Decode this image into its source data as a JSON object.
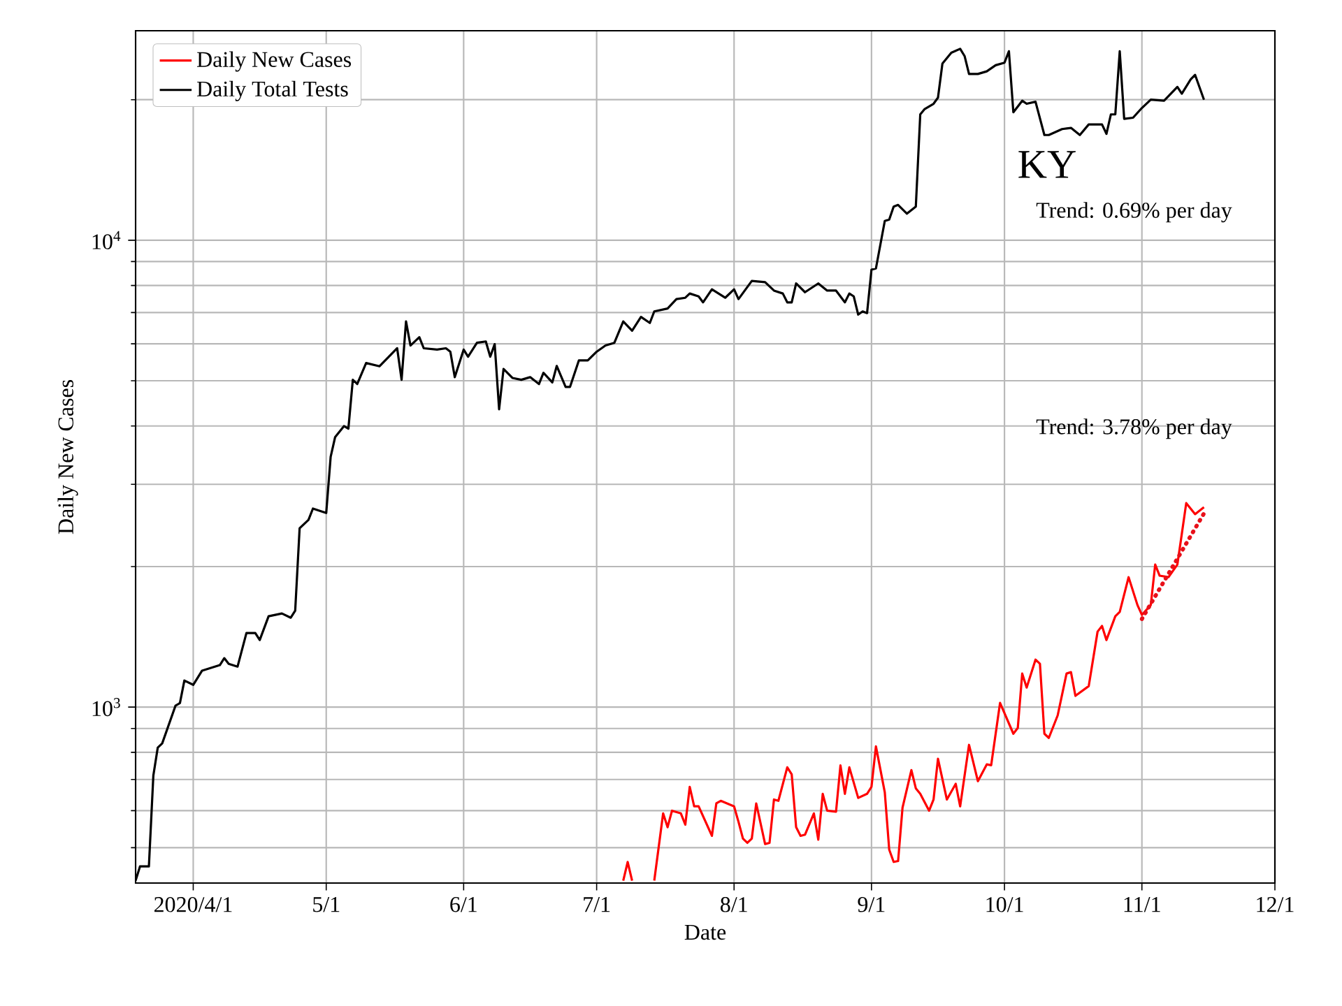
{
  "chart_data": {
    "type": "line",
    "title": "KY",
    "xlabel": "Date",
    "ylabel": "Daily New Cases",
    "log": "y",
    "grid": true,
    "legend": "top left",
    "xlim": [
      "2020-03-19",
      "2020-12-01"
    ],
    "xticks": [
      {
        "value": "2020-04-01",
        "label": "2020/4/1"
      },
      {
        "value": "2020-05-01",
        "label": "5/1"
      },
      {
        "value": "2020-06-01",
        "label": "6/1"
      },
      {
        "value": "2020-07-01",
        "label": "7/1"
      },
      {
        "value": "2020-08-01",
        "label": "8/1"
      },
      {
        "value": "2020-09-01",
        "label": "9/1"
      },
      {
        "value": "2020-10-01",
        "label": "10/1"
      },
      {
        "value": "2020-11-01",
        "label": "11/1"
      },
      {
        "value": "2020-12-01",
        "label": "12/1"
      }
    ],
    "ylim": [
      420,
      28100
    ],
    "yticks": [
      {
        "value": 500,
        "label": null
      },
      {
        "value": 600,
        "label": null
      },
      {
        "value": 700,
        "label": null
      },
      {
        "value": 800,
        "label": null
      },
      {
        "value": 900,
        "label": null
      },
      {
        "value": 1000,
        "label": "10$^{3}$"
      },
      {
        "value": 2000,
        "label": null
      },
      {
        "value": 3000,
        "label": null
      },
      {
        "value": 4000,
        "label": null
      },
      {
        "value": 5000,
        "label": null
      },
      {
        "value": 6000,
        "label": null
      },
      {
        "value": 7000,
        "label": null
      },
      {
        "value": 8000,
        "label": null
      },
      {
        "value": 9000,
        "label": null
      },
      {
        "value": 10000,
        "label": "10$^{4}$"
      },
      {
        "value": 20000,
        "label": null
      }
    ],
    "annotations": [
      "Trend: 0.69% per day",
      "Trend: 3.78% per day"
    ],
    "series": [
      {
        "name": "Daily New Cases",
        "color": "#ff0000",
        "x": [
          "2020-07-07",
          "2020-07-08",
          "2020-07-09",
          "2020-07-12",
          "2020-07-14",
          "2020-07-16",
          "2020-07-17",
          "2020-07-18",
          "2020-07-20",
          "2020-07-21",
          "2020-07-22",
          "2020-07-23",
          "2020-07-24",
          "2020-07-27",
          "2020-07-28",
          "2020-07-29",
          "2020-08-01",
          "2020-08-02",
          "2020-08-03",
          "2020-08-04",
          "2020-08-05",
          "2020-08-06",
          "2020-08-08",
          "2020-08-09",
          "2020-08-10",
          "2020-08-11",
          "2020-08-13",
          "2020-08-14",
          "2020-08-15",
          "2020-08-16",
          "2020-08-17",
          "2020-08-19",
          "2020-08-20",
          "2020-08-21",
          "2020-08-22",
          "2020-08-24",
          "2020-08-25",
          "2020-08-26",
          "2020-08-27",
          "2020-08-29",
          "2020-08-31",
          "2020-09-01",
          "2020-09-02",
          "2020-09-04",
          "2020-09-05",
          "2020-09-06",
          "2020-09-07",
          "2020-09-08",
          "2020-09-10",
          "2020-09-11",
          "2020-09-12",
          "2020-09-14",
          "2020-09-15",
          "2020-09-16",
          "2020-09-18",
          "2020-09-20",
          "2020-09-21",
          "2020-09-23",
          "2020-09-25",
          "2020-09-27",
          "2020-09-28",
          "2020-09-30",
          "2020-10-03",
          "2020-10-04",
          "2020-10-05",
          "2020-10-06",
          "2020-10-08",
          "2020-10-09",
          "2020-10-10",
          "2020-10-11",
          "2020-10-13",
          "2020-10-15",
          "2020-10-16",
          "2020-10-17",
          "2020-10-20",
          "2020-10-22",
          "2020-10-23",
          "2020-10-24",
          "2020-10-26",
          "2020-10-27",
          "2020-10-29",
          "2020-10-31",
          "2020-11-01",
          "2020-11-03",
          "2020-11-04",
          "2020-11-05",
          "2020-11-07",
          "2020-11-09",
          "2020-11-10",
          "2020-11-11",
          "2020-11-13",
          "2020-11-15"
        ],
        "values": [
          425,
          466,
          425,
          null,
          425,
          592,
          553,
          600,
          592,
          560,
          675,
          613,
          613,
          530,
          622,
          630,
          613,
          568,
          523,
          512,
          523,
          622,
          509,
          512,
          634,
          630,
          743,
          718,
          553,
          530,
          533,
          592,
          520,
          652,
          600,
          597,
          750,
          652,
          743,
          639,
          652,
          675,
          824,
          657,
          495,
          466,
          468,
          609,
          733,
          670,
          652,
          600,
          634,
          775,
          634,
          685,
          613,
          830,
          694,
          754,
          751,
          1021,
          877,
          902,
          1180,
          1101,
          1264,
          1238,
          877,
          859,
          960,
          1180,
          1188,
          1057,
          1109,
          1451,
          1492,
          1392,
          1565,
          1599,
          1898,
          1654,
          1576,
          1654,
          2020,
          1912,
          1898,
          2020,
          2350,
          2735,
          2590,
          2680
        ]
      },
      {
        "name": "Daily Total Tests",
        "color": "#000000",
        "x": [
          "2020-03-19",
          "2020-03-20",
          "2020-03-22",
          "2020-03-23",
          "2020-03-24",
          "2020-03-25",
          "2020-03-28",
          "2020-03-29",
          "2020-03-30",
          "2020-04-01",
          "2020-04-03",
          "2020-04-07",
          "2020-04-08",
          "2020-04-09",
          "2020-04-11",
          "2020-04-13",
          "2020-04-15",
          "2020-04-16",
          "2020-04-18",
          "2020-04-21",
          "2020-04-23",
          "2020-04-24",
          "2020-04-25",
          "2020-04-27",
          "2020-04-28",
          "2020-05-01",
          "2020-05-02",
          "2020-05-03",
          "2020-05-05",
          "2020-05-06",
          "2020-05-07",
          "2020-05-08",
          "2020-05-10",
          "2020-05-13",
          "2020-05-17",
          "2020-05-18",
          "2020-05-19",
          "2020-05-20",
          "2020-05-22",
          "2020-05-23",
          "2020-05-26",
          "2020-05-28",
          "2020-05-29",
          "2020-05-30",
          "2020-06-01",
          "2020-06-02",
          "2020-06-04",
          "2020-06-06",
          "2020-06-07",
          "2020-06-08",
          "2020-06-09",
          "2020-06-10",
          "2020-06-12",
          "2020-06-14",
          "2020-06-16",
          "2020-06-18",
          "2020-06-19",
          "2020-06-21",
          "2020-06-22",
          "2020-06-24",
          "2020-06-25",
          "2020-06-27",
          "2020-06-29",
          "2020-07-01",
          "2020-07-03",
          "2020-07-05",
          "2020-07-07",
          "2020-07-09",
          "2020-07-11",
          "2020-07-13",
          "2020-07-14",
          "2020-07-17",
          "2020-07-19",
          "2020-07-21",
          "2020-07-22",
          "2020-07-24",
          "2020-07-25",
          "2020-07-27",
          "2020-07-30",
          "2020-08-01",
          "2020-08-02",
          "2020-08-05",
          "2020-08-08",
          "2020-08-10",
          "2020-08-12",
          "2020-08-13",
          "2020-08-14",
          "2020-08-15",
          "2020-08-17",
          "2020-08-20",
          "2020-08-22",
          "2020-08-24",
          "2020-08-26",
          "2020-08-27",
          "2020-08-28",
          "2020-08-29",
          "2020-08-30",
          "2020-08-31",
          "2020-09-01",
          "2020-09-02",
          "2020-09-04",
          "2020-09-05",
          "2020-09-06",
          "2020-09-07",
          "2020-09-09",
          "2020-09-11",
          "2020-09-12",
          "2020-09-13",
          "2020-09-15",
          "2020-09-16",
          "2020-09-17",
          "2020-09-19",
          "2020-09-21",
          "2020-09-22",
          "2020-09-23",
          "2020-09-25",
          "2020-09-27",
          "2020-09-29",
          "2020-10-01",
          "2020-10-02",
          "2020-10-03",
          "2020-10-05",
          "2020-10-06",
          "2020-10-08",
          "2020-10-10",
          "2020-10-11",
          "2020-10-14",
          "2020-10-16",
          "2020-10-18",
          "2020-10-20",
          "2020-10-23",
          "2020-10-24",
          "2020-10-25",
          "2020-10-26",
          "2020-10-27",
          "2020-10-28",
          "2020-10-30",
          "2020-11-01",
          "2020-11-03",
          "2020-11-06",
          "2020-11-09",
          "2020-11-10",
          "2020-11-12",
          "2020-11-13",
          "2020-11-15"
        ],
        "values": [
          425,
          456,
          456,
          713,
          819,
          836,
          1007,
          1020,
          1140,
          1116,
          1197,
          1230,
          1273,
          1238,
          1221,
          1441,
          1441,
          1392,
          1565,
          1587,
          1554,
          1609,
          2416,
          2518,
          2662,
          2605,
          3436,
          3786,
          3999,
          3950,
          5024,
          4920,
          5458,
          5370,
          5870,
          5024,
          6700,
          5950,
          6200,
          5870,
          5830,
          5870,
          5770,
          5090,
          5830,
          5630,
          6030,
          6070,
          5630,
          5990,
          4345,
          5300,
          5070,
          5024,
          5090,
          4920,
          5200,
          4960,
          5380,
          4850,
          4850,
          5530,
          5530,
          5770,
          5950,
          6030,
          6700,
          6400,
          6850,
          6650,
          7040,
          7140,
          7480,
          7530,
          7690,
          7580,
          7360,
          7850,
          7530,
          7850,
          7480,
          8180,
          8130,
          7800,
          7690,
          7360,
          7360,
          8080,
          7740,
          8080,
          7800,
          7800,
          7360,
          7690,
          7580,
          6930,
          7040,
          6980,
          8650,
          8700,
          11000,
          11070,
          11800,
          11900,
          11400,
          11800,
          18600,
          19100,
          19600,
          20200,
          23900,
          25200,
          25700,
          24800,
          22700,
          22700,
          23000,
          23700,
          24000,
          25400,
          18800,
          19900,
          19600,
          19800,
          16800,
          16800,
          17300,
          17400,
          16800,
          17700,
          17700,
          16900,
          18600,
          18600,
          25400,
          18200,
          18300,
          19200,
          20000,
          19900,
          21300,
          20600,
          22100,
          22600,
          20000
        ]
      },
      {
        "type": "line",
        "line_style": "dotted",
        "color": "#e8101a",
        "x": [
          "2020-11-01",
          "2020-11-15"
        ],
        "values": [
          1545,
          2600
        ]
      }
    ]
  }
}
